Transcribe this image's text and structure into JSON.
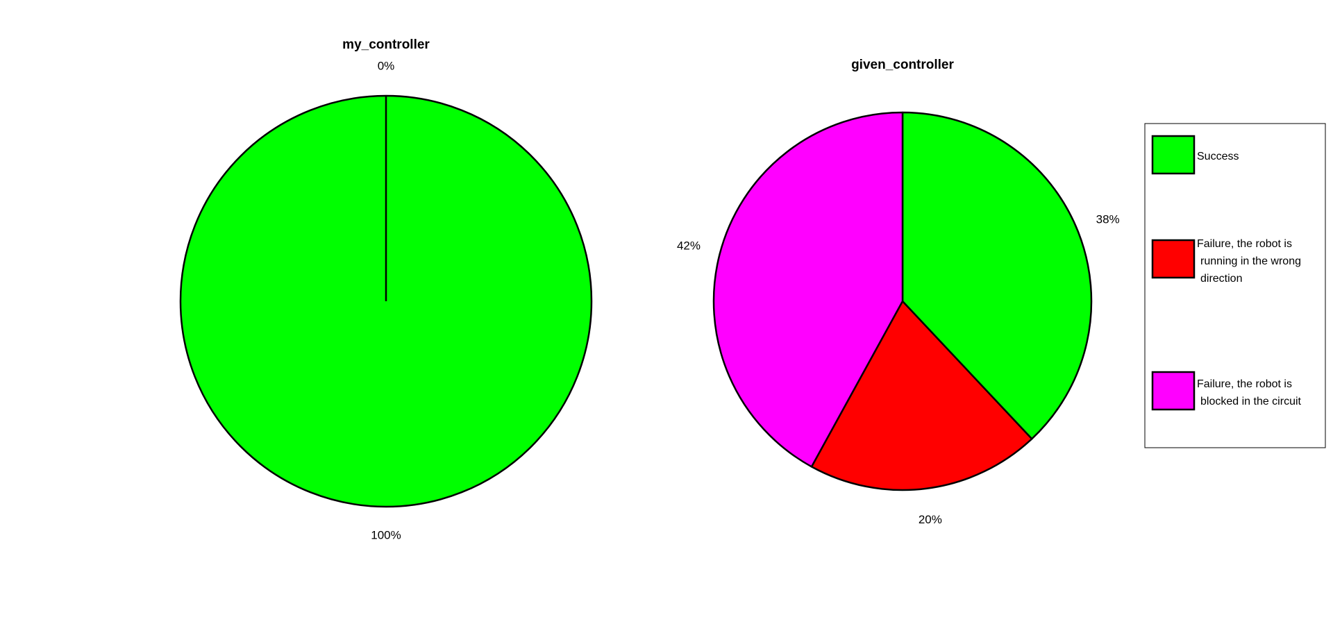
{
  "chart_data": [
    {
      "type": "pie",
      "title": "my_controller",
      "categories": [
        "Success",
        "Failure, the robot is running in the wrong direction",
        "Failure, the robot is blocked in the circuit"
      ],
      "values": [
        100,
        0,
        0
      ],
      "labels": [
        "100%",
        "0%",
        ""
      ],
      "colors": [
        "#00ff00",
        "#ff0000",
        "#ff00ff"
      ]
    },
    {
      "type": "pie",
      "title": "given_controller",
      "categories": [
        "Success",
        "Failure, the robot is running in the wrong direction",
        "Failure, the robot is blocked in the circuit"
      ],
      "values": [
        38,
        20,
        42
      ],
      "labels": [
        "38%",
        "20%",
        "42%"
      ],
      "colors": [
        "#00ff00",
        "#ff0000",
        "#ff00ff"
      ]
    }
  ],
  "legend": {
    "placement": "right",
    "items": [
      {
        "lines": [
          "Success"
        ],
        "color": "#00ff00"
      },
      {
        "lines": [
          "Failure, the robot is",
          "running in the wrong",
          "direction"
        ],
        "color": "#ff0000"
      },
      {
        "lines": [
          "Failure, the robot is",
          "blocked in the circuit"
        ],
        "color": "#ff00ff"
      }
    ]
  }
}
